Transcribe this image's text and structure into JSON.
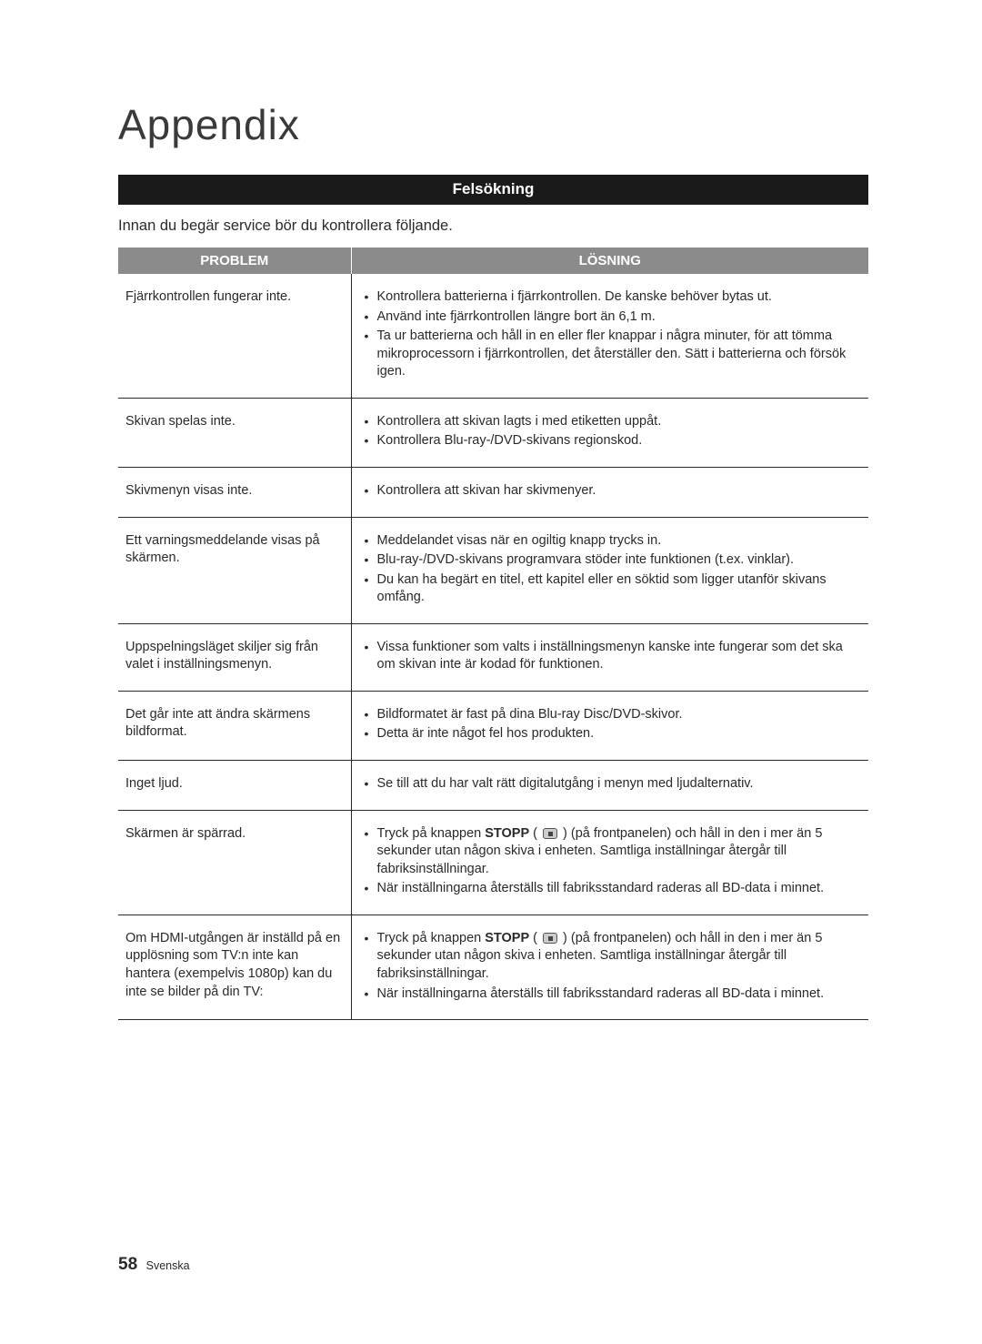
{
  "title": "Appendix",
  "section_header": "Felsökning",
  "intro": "Innan du begär service bör du kontrollera följande.",
  "col_problem": "PROBLEM",
  "col_solution": "LÖSNING",
  "footer": {
    "page": "58",
    "lang": "Svenska"
  },
  "colors": {
    "header_bg": "#1a1a1a",
    "th_bg": "#8b8b8b",
    "border": "#2a2a2a"
  },
  "rows": [
    {
      "problem": "Fjärrkontrollen fungerar inte.",
      "solutions": [
        {
          "text": "Kontrollera batterierna i fjärrkontrollen. De kanske behöver bytas ut."
        },
        {
          "text": "Använd inte fjärrkontrollen längre bort än 6,1 m."
        },
        {
          "text": "Ta ur batterierna och håll in en eller fler knappar i några minuter, för att tömma mikroprocessorn i fjärrkontrollen, det återställer den. Sätt i batterierna och försök igen."
        }
      ]
    },
    {
      "problem": "Skivan spelas inte.",
      "solutions": [
        {
          "text": "Kontrollera att skivan lagts i med etiketten uppåt."
        },
        {
          "text": "Kontrollera Blu-ray-/DVD-skivans regionskod."
        }
      ]
    },
    {
      "problem": "Skivmenyn visas inte.",
      "solutions": [
        {
          "text": "Kontrollera att skivan har skivmenyer."
        }
      ]
    },
    {
      "problem": "Ett varningsmeddelande visas på skärmen.",
      "solutions": [
        {
          "text": "Meddelandet visas när en ogiltig knapp trycks in."
        },
        {
          "text": "Blu-ray-/DVD-skivans programvara stöder inte funktionen (t.ex. vinklar)."
        },
        {
          "text": "Du kan ha begärt en titel, ett kapitel eller en söktid som ligger utanför skivans omfång."
        }
      ]
    },
    {
      "problem": "Uppspelningsläget skiljer sig från valet i inställningsmenyn.",
      "solutions": [
        {
          "text": "Vissa funktioner som valts i inställningsmenyn kanske inte fungerar som det ska om skivan inte är kodad för funktionen."
        }
      ]
    },
    {
      "problem": "Det går inte att ändra skärmens bildformat.",
      "solutions": [
        {
          "text": "Bildformatet är fast på dina Blu-ray Disc/DVD-skivor."
        },
        {
          "text": "Detta är inte något fel hos produkten."
        }
      ]
    },
    {
      "problem": "Inget ljud.",
      "solutions": [
        {
          "text": "Se till att du har valt rätt digitalutgång i menyn med ljudalternativ."
        }
      ]
    },
    {
      "problem": "Skärmen är spärrad.",
      "solutions": [
        {
          "stop": true,
          "pre": "Tryck på knappen ",
          "bold": "STOPP",
          "mid": " ( ",
          "post": " ) (på frontpanelen) och håll in den i mer än 5 sekunder utan någon skiva i enheten. Samtliga inställningar återgår till fabriksinställningar."
        },
        {
          "text": "När inställningarna återställs till fabriksstandard raderas all BD-data i minnet."
        }
      ]
    },
    {
      "problem": "Om HDMI-utgången är inställd på en upplösning som TV:n inte kan hantera (exempelvis 1080p) kan du inte se bilder på din TV:",
      "solutions": [
        {
          "stop": true,
          "pre": "Tryck på knappen ",
          "bold": "STOPP",
          "mid": " ( ",
          "post": " ) (på frontpanelen) och håll in den i mer än 5 sekunder utan någon skiva i enheten. Samtliga inställningar återgår till fabriksinställningar."
        },
        {
          "text": "När inställningarna återställs till fabriksstandard raderas all BD-data i minnet."
        }
      ]
    }
  ]
}
